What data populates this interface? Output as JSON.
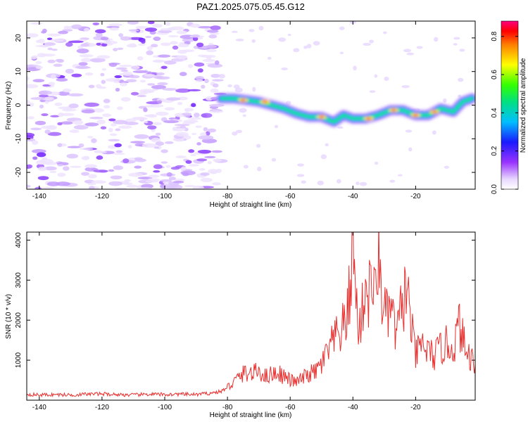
{
  "title": "PAZ1.2025.075.05.45.G12",
  "colors": {
    "snr_line": "#e8302f",
    "spectrogram": "rainbow (violet to red)"
  },
  "chart_data": [
    {
      "type": "heatmap",
      "title": "PAZ1.2025.075.05.45.G12",
      "xlabel": "Height of straight line (km)",
      "ylabel": "Frequency (Hz)",
      "xlim": [
        -144,
        -1
      ],
      "ylim": [
        -25,
        25
      ],
      "xticks": [
        "-140",
        "-120",
        "-100",
        "-80",
        "-60",
        "-40",
        "-20"
      ],
      "yticks": [
        "-20",
        "-10",
        "0",
        "10",
        "20"
      ],
      "colorbar": {
        "label": "Normalized spectral amplitude",
        "range": [
          0,
          0.88
        ],
        "ticks": [
          "0.0",
          "0.2",
          "0.4",
          "0.6",
          "0.8"
        ]
      },
      "ridge": {
        "x": [
          -82,
          -78,
          -74,
          -70,
          -66,
          -62,
          -58,
          -54,
          -50,
          -46,
          -43,
          -40,
          -36,
          -32,
          -28,
          -24,
          -20,
          -16,
          -12,
          -8,
          -5,
          -2
        ],
        "y": [
          2,
          2,
          1.5,
          1,
          0,
          -1,
          -2.5,
          -3.5,
          -3.5,
          -5,
          -3,
          -4,
          -4,
          -3,
          -1.5,
          -1.5,
          -3,
          -3,
          -1,
          -2,
          1,
          2
        ]
      },
      "grid": false
    },
    {
      "type": "line",
      "xlabel": "Height of straight line (km)",
      "ylabel": "SNR (10 * v/v)",
      "xlim": [
        -144,
        -1
      ],
      "ylim": [
        0,
        4200
      ],
      "xticks": [
        "-140",
        "-120",
        "-100",
        "-80",
        "-60",
        "-40",
        "-20"
      ],
      "yticks": [
        "1000",
        "2000",
        "3000",
        "4000"
      ],
      "series": [
        {
          "color": "#e8302f",
          "x": [
            -144,
            -140,
            -135,
            -130,
            -125,
            -120,
            -115,
            -110,
            -105,
            -100,
            -95,
            -90,
            -85,
            -82,
            -80,
            -78,
            -76,
            -74,
            -72,
            -70,
            -68,
            -66,
            -64,
            -62,
            -60,
            -58,
            -56,
            -54,
            -52,
            -50,
            -48,
            -46,
            -44,
            -42,
            -41,
            -40,
            -39,
            -38,
            -37,
            -36,
            -35,
            -34,
            -33,
            -32,
            -31,
            -30,
            -29,
            -28,
            -27,
            -26,
            -25,
            -24,
            -23,
            -22,
            -21,
            -20,
            -18,
            -16,
            -14,
            -12,
            -10,
            -8,
            -6,
            -4,
            -2,
            -1
          ],
          "y": [
            150,
            130,
            140,
            130,
            150,
            160,
            140,
            130,
            150,
            140,
            150,
            140,
            180,
            220,
            320,
            450,
            600,
            700,
            650,
            750,
            600,
            650,
            700,
            600,
            500,
            450,
            550,
            650,
            700,
            900,
            1200,
            1500,
            1700,
            2000,
            2700,
            4200,
            2400,
            1800,
            2200,
            2900,
            2600,
            3100,
            2500,
            3700,
            2800,
            2300,
            2000,
            2400,
            1900,
            1600,
            2100,
            2500,
            2800,
            2300,
            1600,
            1100,
            1400,
            1200,
            1100,
            1300,
            1400,
            1300,
            1900,
            1200,
            1050,
            900
          ]
        }
      ],
      "grid": false
    }
  ]
}
